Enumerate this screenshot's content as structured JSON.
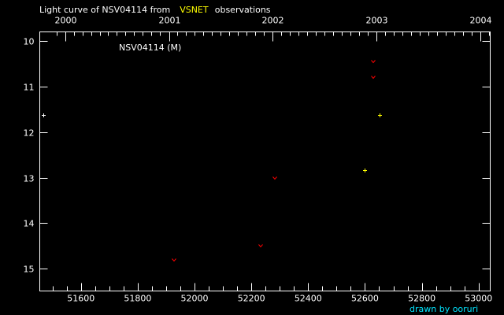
{
  "chart_data": {
    "type": "scatter",
    "title_prefix": "Light curve of NSV04114 from",
    "title_source": "VSNET",
    "title_suffix": "observations",
    "title": "Light curve of NSV04114 from VSNET observations",
    "star_label": "NSV04114 (M)",
    "xlabel": "",
    "ylabel": "",
    "xlim": [
      51455,
      53041
    ],
    "ylim": [
      9.8,
      15.49
    ],
    "y_inverted": true,
    "x_ticks": [
      "51600",
      "51800",
      "52000",
      "52200",
      "52400",
      "52600",
      "52800",
      "53000"
    ],
    "y_ticks": [
      "10",
      "11",
      "12",
      "13",
      "14",
      "15"
    ],
    "top_axis": {
      "ticks": [
        "2000",
        "2001",
        "2002",
        "2003",
        "2004"
      ],
      "tick_jd": [
        51544,
        51910,
        52275,
        52640,
        53005
      ]
    },
    "series": [
      {
        "name": "positive",
        "marker": "cross",
        "points": [
          {
            "jd": 51468,
            "mag": 11.62,
            "color": "#ffffff"
          },
          {
            "jd": 52651,
            "mag": 11.62,
            "color": "#ffff00"
          },
          {
            "jd": 52599,
            "mag": 12.83,
            "color": "#ffff00"
          }
        ]
      },
      {
        "name": "fainter-than",
        "marker": "v",
        "points": [
          {
            "jd": 52629,
            "mag": 10.45,
            "color": "#ff0000"
          },
          {
            "jd": 52629,
            "mag": 10.8,
            "color": "#ff0000"
          },
          {
            "jd": 52283,
            "mag": 13.0,
            "color": "#ff0000"
          },
          {
            "jd": 52233,
            "mag": 14.5,
            "color": "#ff0000"
          },
          {
            "jd": 51928,
            "mag": 14.8,
            "color": "#ff0000"
          }
        ]
      }
    ],
    "grid": false
  },
  "credit": "drawn by ooruri",
  "colors": {
    "axis": "#ffffff",
    "source": "#ffff00",
    "credit": "#00e5ff"
  }
}
